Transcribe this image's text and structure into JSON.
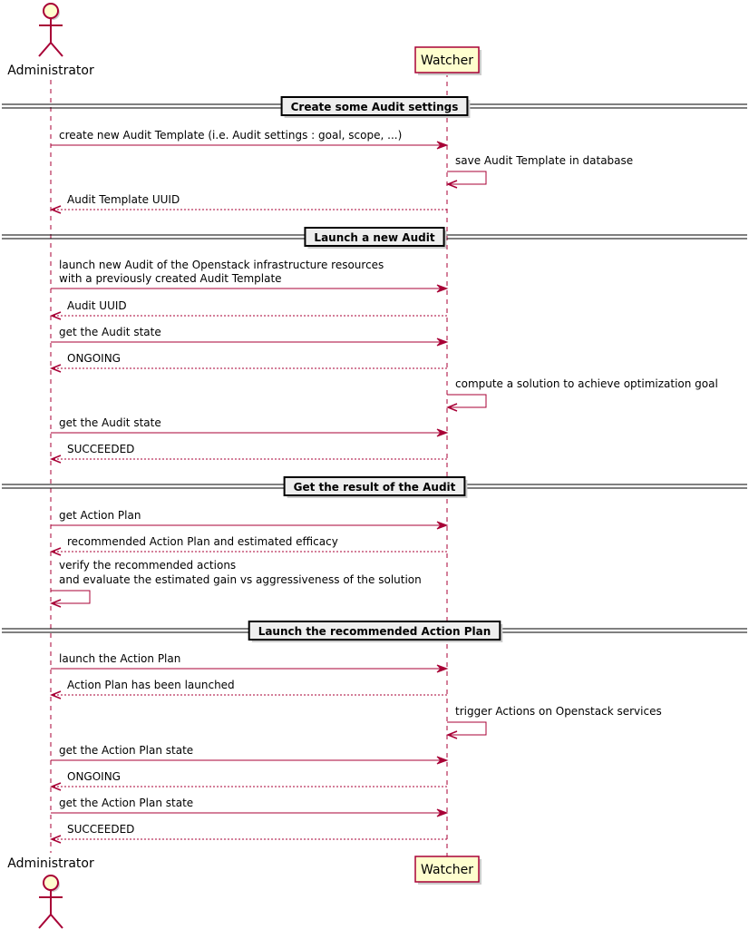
{
  "participants": {
    "admin": {
      "label": "Administrator",
      "kind": "actor"
    },
    "watcher": {
      "label": "Watcher",
      "kind": "participant"
    }
  },
  "colors": {
    "line": "#A80036",
    "fill": "#FEFECE",
    "divider_fill": "#EEEEEE"
  },
  "dividers": [
    {
      "label": "Create some Audit settings"
    },
    {
      "label": "Launch a new Audit"
    },
    {
      "label": "Get the result of the Audit"
    },
    {
      "label": "Launch the recommended Action Plan"
    }
  ],
  "messages": [
    {
      "from": "admin",
      "to": "watcher",
      "type": "sync",
      "lines": [
        "create new Audit Template (i.e. Audit settings : goal, scope, ...)"
      ]
    },
    {
      "from": "watcher",
      "to": "watcher",
      "type": "self",
      "lines": [
        "save Audit Template in database"
      ]
    },
    {
      "from": "watcher",
      "to": "admin",
      "type": "return",
      "lines": [
        "Audit Template UUID"
      ]
    },
    {
      "from": "admin",
      "to": "watcher",
      "type": "sync",
      "lines": [
        "launch new Audit of the Openstack infrastructure resources",
        "with a previously created Audit Template"
      ]
    },
    {
      "from": "watcher",
      "to": "admin",
      "type": "return",
      "lines": [
        "Audit UUID"
      ]
    },
    {
      "from": "admin",
      "to": "watcher",
      "type": "sync",
      "lines": [
        "get the Audit state"
      ]
    },
    {
      "from": "watcher",
      "to": "admin",
      "type": "return",
      "lines": [
        "ONGOING"
      ]
    },
    {
      "from": "watcher",
      "to": "watcher",
      "type": "self",
      "lines": [
        "compute a solution to achieve optimization goal"
      ]
    },
    {
      "from": "admin",
      "to": "watcher",
      "type": "sync",
      "lines": [
        "get the Audit state"
      ]
    },
    {
      "from": "watcher",
      "to": "admin",
      "type": "return",
      "lines": [
        "SUCCEEDED"
      ]
    },
    {
      "from": "admin",
      "to": "watcher",
      "type": "sync",
      "lines": [
        "get Action Plan"
      ]
    },
    {
      "from": "watcher",
      "to": "admin",
      "type": "return",
      "lines": [
        "recommended Action Plan and estimated efficacy"
      ]
    },
    {
      "from": "admin",
      "to": "admin",
      "type": "self",
      "lines": [
        "verify the recommended actions",
        "and evaluate the estimated gain vs aggressiveness of the solution"
      ]
    },
    {
      "from": "admin",
      "to": "watcher",
      "type": "sync",
      "lines": [
        "launch the Action Plan"
      ]
    },
    {
      "from": "watcher",
      "to": "admin",
      "type": "return",
      "lines": [
        "Action Plan has been launched"
      ]
    },
    {
      "from": "watcher",
      "to": "watcher",
      "type": "self",
      "lines": [
        "trigger Actions on Openstack services"
      ]
    },
    {
      "from": "admin",
      "to": "watcher",
      "type": "sync",
      "lines": [
        "get the Action Plan state"
      ]
    },
    {
      "from": "watcher",
      "to": "admin",
      "type": "return",
      "lines": [
        "ONGOING"
      ]
    },
    {
      "from": "admin",
      "to": "watcher",
      "type": "sync",
      "lines": [
        "get the Action Plan state"
      ]
    },
    {
      "from": "watcher",
      "to": "admin",
      "type": "return",
      "lines": [
        "SUCCEEDED"
      ]
    }
  ]
}
